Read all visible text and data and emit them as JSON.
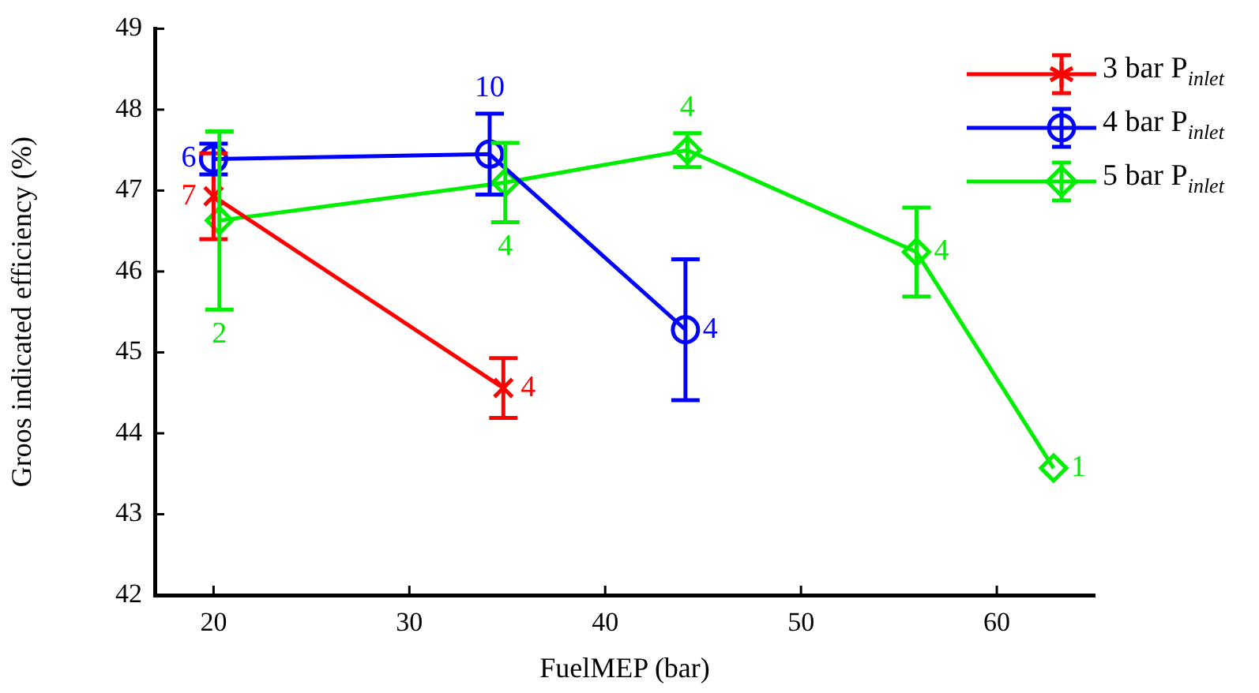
{
  "chart_data": {
    "type": "line",
    "xlabel": "FuelMEP (bar)",
    "ylabel": "Groos indicated efficiency (%)",
    "xlim": [
      17,
      65
    ],
    "xticks": [
      20,
      30,
      40,
      50,
      60
    ],
    "ylim": [
      42,
      49
    ],
    "yticks": [
      42,
      43,
      44,
      45,
      46,
      47,
      48,
      49
    ],
    "grid": false,
    "legend": "top right",
    "line_style": "solid",
    "series": [
      {
        "name": "3 bar P$_{inlet}$",
        "color": "#ff0000",
        "marker": "cross",
        "x": [
          20,
          34.8
        ],
        "values": [
          46.93,
          44.56
        ],
        "errors": [
          0.53,
          0.37
        ]
      },
      {
        "name": "4 bar P$_{inlet}$",
        "color": "#0000ff",
        "marker": "circle",
        "x": [
          20,
          34.1,
          44.1
        ],
        "values": [
          47.39,
          47.45,
          45.28
        ],
        "errors": [
          0.19,
          0.5,
          0.87
        ]
      },
      {
        "name": "5 bar P$_{inlet}$",
        "color": "#00ee00",
        "marker": "diamond",
        "x": [
          20.3,
          34.9,
          44.2,
          55.9,
          62.9
        ],
        "values": [
          46.63,
          47.1,
          47.5,
          46.24,
          43.57
        ],
        "errors": [
          1.1,
          0.49,
          0.21,
          0.55,
          null
        ]
      }
    ],
    "annotations": [
      {
        "text": "7",
        "x": 20,
        "y": 46.93
      },
      {
        "text": "4",
        "x": 34.8,
        "y": 44.56
      },
      {
        "text": "6",
        "x": 20,
        "y": 47.39
      },
      {
        "text": "10",
        "x": 34.1,
        "y": 47.95
      },
      {
        "text": "4",
        "x": 44.1,
        "y": 45.28
      },
      {
        "text": "2",
        "x": 20.3,
        "y": 45.53
      },
      {
        "text": "4",
        "x": 34.9,
        "y": 46.61
      },
      {
        "text": "4",
        "x": 44.2,
        "y": 47.71
      },
      {
        "text": "4",
        "x": 55.9,
        "y": 46.24
      },
      {
        "text": "1",
        "x": 62.9,
        "y": 43.57
      }
    ]
  }
}
